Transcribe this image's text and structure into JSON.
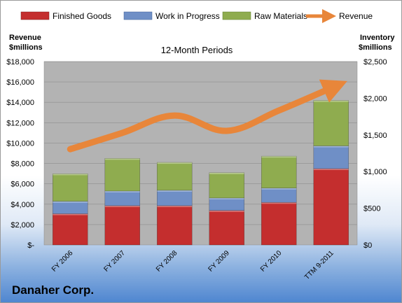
{
  "company": "Danaher Corp.",
  "colors": {
    "finished_goods": "#c42e2e",
    "work_in_progress": "#6f8fc6",
    "raw_materials": "#8fac4f",
    "revenue": "#e8863a",
    "plot_bg": "#b3b3b3"
  },
  "chart_data": {
    "type": "bar",
    "subtype": "stacked-bar with line overlay",
    "title": "12-Month Periods",
    "categories": [
      "FY 2006",
      "FY 2007",
      "FY 2008",
      "FY 2009",
      "FY 2010",
      "TTM 9-2011"
    ],
    "left_axis": {
      "label_line1": "Revenue",
      "label_line2": "$millions",
      "ylim": [
        0,
        18000
      ],
      "ticks": [
        0,
        2000,
        4000,
        6000,
        8000,
        10000,
        12000,
        14000,
        16000,
        18000
      ],
      "tick_labels": [
        "$-",
        "$2,000",
        "$4,000",
        "$6,000",
        "$8,000",
        "$10,000",
        "$12,000",
        "$14,000",
        "$16,000",
        "$18,000"
      ]
    },
    "right_axis": {
      "label_line1": "Inventory",
      "label_line2": "$millions",
      "ylim": [
        0,
        2500
      ],
      "ticks": [
        0,
        500,
        1000,
        1500,
        2000,
        2500
      ],
      "tick_labels": [
        "$0",
        "$500",
        "$1,000",
        "$1,500",
        "$2,000",
        "$2,500"
      ]
    },
    "bar_series": [
      {
        "name": "Finished Goods",
        "color_key": "finished_goods",
        "values": [
          425,
          535,
          535,
          470,
          580,
          1040
        ]
      },
      {
        "name": "Work in Progress",
        "color_key": "work_in_progress",
        "values": [
          170,
          200,
          210,
          170,
          195,
          310
        ]
      },
      {
        "name": "Raw Materials",
        "color_key": "raw_materials",
        "values": [
          375,
          445,
          380,
          345,
          435,
          620
        ]
      }
    ],
    "line_series": {
      "name": "Revenue",
      "color_key": "revenue",
      "values": [
        9400,
        11000,
        12700,
        11200,
        13200,
        15400
      ]
    },
    "grid": true,
    "legend_position": "top"
  }
}
